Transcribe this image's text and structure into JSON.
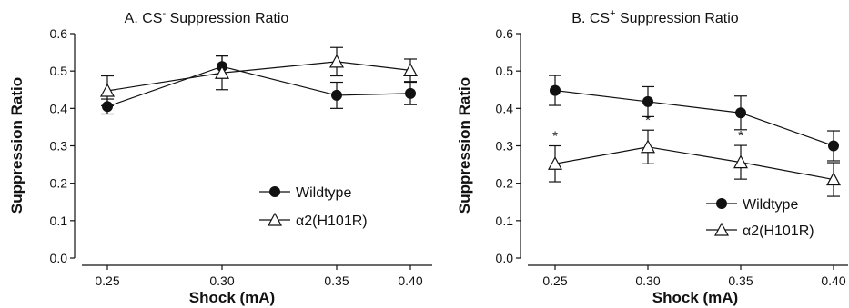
{
  "chart_data": [
    {
      "type": "line",
      "title_main": "A. CS",
      "title_sup": "-",
      "title_rest": " Suppression Ratio",
      "xlabel": "Shock (mA)",
      "ylabel": "Suppression Ratio",
      "x": [
        "0.25",
        "0.30",
        "0.35",
        "0.40"
      ],
      "ylim": [
        0,
        0.6
      ],
      "yticks": [
        "0.0",
        "0.1",
        "0.2",
        "0.3",
        "0.4",
        "0.5",
        "0.6"
      ],
      "legend": "bottom-right",
      "series": [
        {
          "name": "Wildtype",
          "marker": "circle-filled",
          "values": [
            0.405,
            0.512,
            0.435,
            0.44
          ],
          "err": [
            0.02,
            0.03,
            0.035,
            0.03
          ]
        },
        {
          "name": "α2(H101R)",
          "marker": "triangle-open",
          "values": [
            0.447,
            0.495,
            0.525,
            0.502
          ],
          "err": [
            0.04,
            0.045,
            0.038,
            0.03
          ]
        }
      ],
      "annotations": []
    },
    {
      "type": "line",
      "title_main": "B. CS",
      "title_sup": "+",
      "title_rest": " Suppression Ratio",
      "xlabel": "Shock (mA)",
      "ylabel": "Suppression Ratio",
      "x": [
        "0.25",
        "0.30",
        "0.35",
        "0.40"
      ],
      "ylim": [
        0,
        0.6
      ],
      "yticks": [
        "0.0",
        "0.1",
        "0.2",
        "0.3",
        "0.4",
        "0.5",
        "0.6"
      ],
      "legend": "bottom-right",
      "series": [
        {
          "name": "Wildtype",
          "marker": "circle-filled",
          "values": [
            0.448,
            0.418,
            0.388,
            0.3
          ],
          "err": [
            0.04,
            0.04,
            0.045,
            0.04
          ]
        },
        {
          "name": "α2(H101R)",
          "marker": "triangle-open",
          "values": [
            0.252,
            0.297,
            0.256,
            0.21
          ],
          "err": [
            0.048,
            0.045,
            0.045,
            0.045
          ]
        }
      ],
      "annotations": [
        {
          "x": "0.25",
          "text": "*"
        },
        {
          "x": "0.30",
          "text": "*"
        },
        {
          "x": "0.35",
          "text": "*"
        }
      ]
    }
  ]
}
